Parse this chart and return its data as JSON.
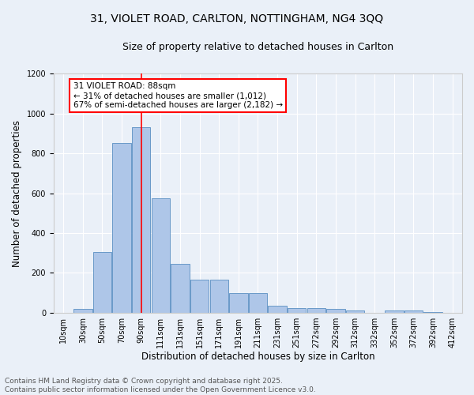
{
  "title_line1": "31, VIOLET ROAD, CARLTON, NOTTINGHAM, NG4 3QQ",
  "title_line2": "Size of property relative to detached houses in Carlton",
  "xlabel": "Distribution of detached houses by size in Carlton",
  "ylabel": "Number of detached properties",
  "bin_labels": [
    "10sqm",
    "30sqm",
    "50sqm",
    "70sqm",
    "90sqm",
    "111sqm",
    "131sqm",
    "151sqm",
    "171sqm",
    "191sqm",
    "211sqm",
    "231sqm",
    "251sqm",
    "272sqm",
    "292sqm",
    "312sqm",
    "332sqm",
    "352sqm",
    "372sqm",
    "392sqm",
    "412sqm"
  ],
  "bar_values": [
    0,
    20,
    305,
    850,
    930,
    575,
    245,
    165,
    165,
    100,
    100,
    35,
    25,
    25,
    20,
    12,
    0,
    10,
    10,
    5,
    0
  ],
  "bar_color": "#aec6e8",
  "bar_edge_color": "#5a8fc2",
  "bg_color": "#eaf0f8",
  "grid_color": "#ffffff",
  "vline_x": 4,
  "vline_color": "red",
  "annotation_text": "31 VIOLET ROAD: 88sqm\n← 31% of detached houses are smaller (1,012)\n67% of semi-detached houses are larger (2,182) →",
  "annotation_box_color": "white",
  "annotation_box_edge": "red",
  "ylim": [
    0,
    1200
  ],
  "yticks": [
    0,
    200,
    400,
    600,
    800,
    1000,
    1200
  ],
  "footer_line1": "Contains HM Land Registry data © Crown copyright and database right 2025.",
  "footer_line2": "Contains public sector information licensed under the Open Government Licence v3.0.",
  "title_fontsize": 10,
  "subtitle_fontsize": 9,
  "axis_label_fontsize": 8.5,
  "tick_fontsize": 7,
  "annotation_fontsize": 7.5,
  "footer_fontsize": 6.5
}
